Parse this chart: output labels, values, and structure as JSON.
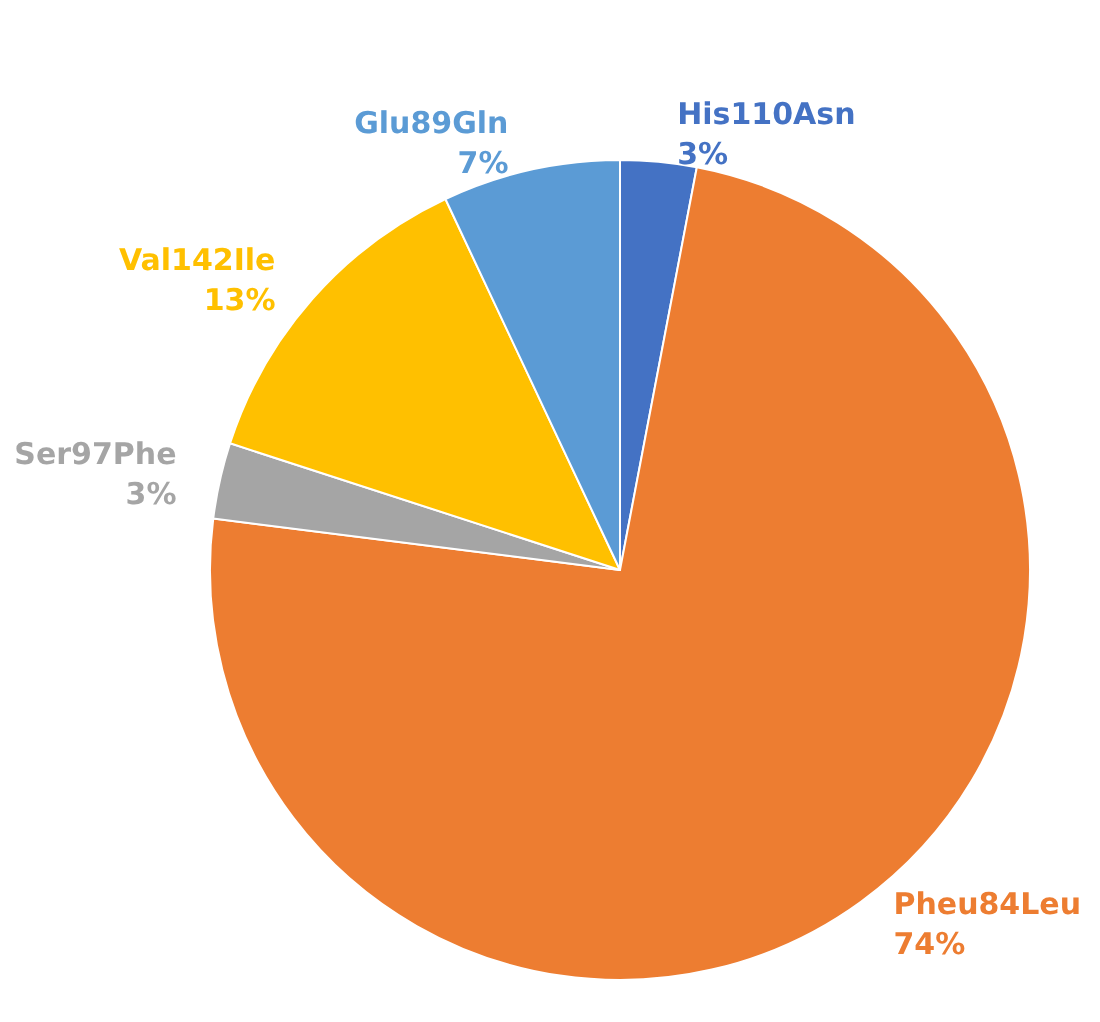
{
  "chart_data": {
    "type": "pie",
    "categories": [
      "His110Asn",
      "Pheu84Leu",
      "Ser97Phe",
      "Val142Ile",
      "Glu89Gln"
    ],
    "values": [
      3,
      74,
      3,
      13,
      7
    ],
    "value_labels": [
      "3%",
      "74%",
      "3%",
      "13%",
      "7%"
    ],
    "colors": [
      "#4472c4",
      "#ed7d31",
      "#a5a5a5",
      "#ffc000",
      "#5b9bd5"
    ]
  }
}
